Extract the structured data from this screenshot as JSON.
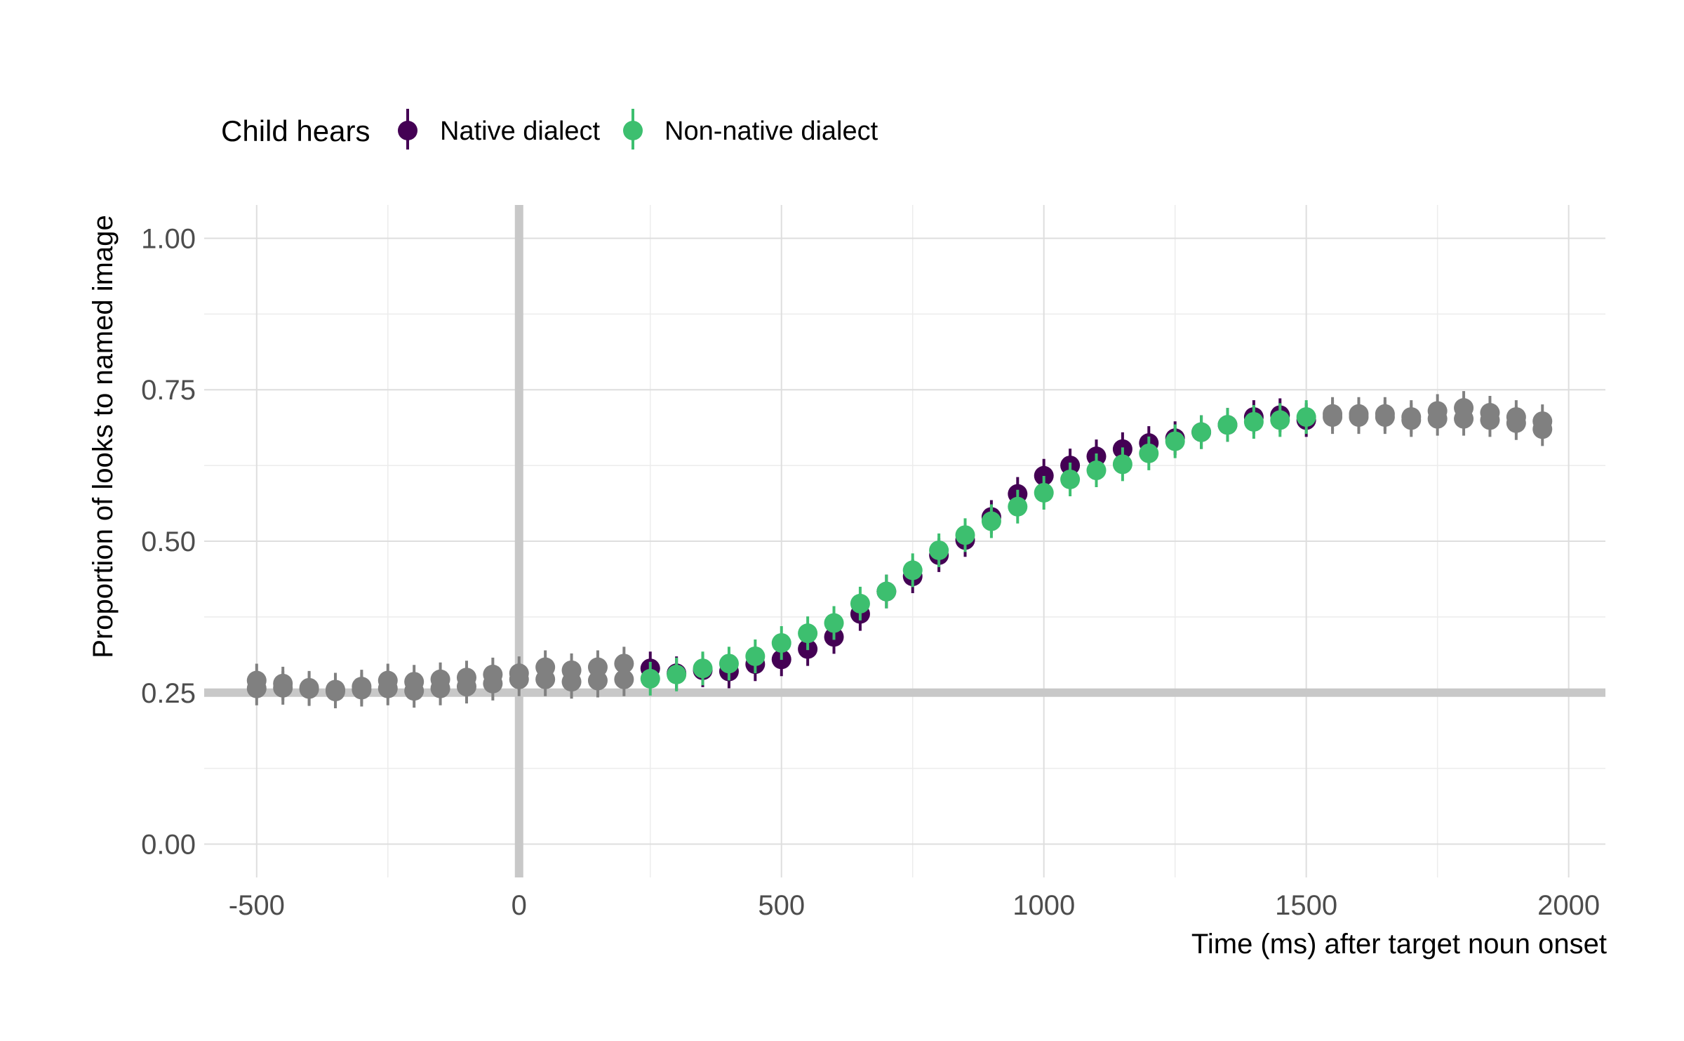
{
  "chart_data": {
    "type": "scatter",
    "xlabel": "Time (ms) after target noun onset",
    "ylabel": "Proportion of looks to named image",
    "xlim": [
      -600,
      2070
    ],
    "ylim": [
      -0.055,
      1.055
    ],
    "x_ticks": [
      "-500",
      "0",
      "500",
      "1000",
      "1500",
      "2000"
    ],
    "y_ticks": [
      "0.00",
      "0.25",
      "0.50",
      "0.75",
      "1.00"
    ],
    "reference_lines": {
      "x": 0,
      "y": 0.25
    },
    "grid": true,
    "legend": {
      "title": "Child hears",
      "position": "top-left",
      "entries": [
        {
          "label": "Native dialect",
          "color": "#440154"
        },
        {
          "label": "Non-native dialect",
          "color": "#3dbf6f"
        }
      ]
    },
    "outside_window_color": "#808080",
    "series": [
      {
        "name": "Native dialect",
        "color": "#440154",
        "x": [
          -500,
          -450,
          -400,
          -350,
          -300,
          -250,
          -200,
          -150,
          -100,
          -50,
          0,
          50,
          100,
          150,
          200,
          250,
          300,
          350,
          400,
          450,
          500,
          550,
          600,
          650,
          700,
          750,
          800,
          850,
          900,
          950,
          1000,
          1050,
          1100,
          1150,
          1200,
          1250,
          1300,
          1350,
          1400,
          1450,
          1500,
          1550,
          1600,
          1650,
          1700,
          1750,
          1800,
          1850,
          1900,
          1950
        ],
        "y": [
          0.27,
          0.265,
          0.258,
          0.255,
          0.26,
          0.27,
          0.268,
          0.272,
          0.275,
          0.28,
          0.282,
          0.292,
          0.287,
          0.292,
          0.298,
          0.29,
          0.282,
          0.287,
          0.285,
          0.297,
          0.305,
          0.322,
          0.342,
          0.38,
          0.417,
          0.442,
          0.477,
          0.502,
          0.54,
          0.578,
          0.608,
          0.625,
          0.64,
          0.652,
          0.662,
          0.67,
          0.68,
          0.692,
          0.705,
          0.708,
          0.7,
          0.71,
          0.71,
          0.71,
          0.705,
          0.715,
          0.72,
          0.712,
          0.705,
          0.698
        ]
      },
      {
        "name": "Non-native dialect",
        "color": "#3dbf6f",
        "x": [
          -500,
          -450,
          -400,
          -350,
          -300,
          -250,
          -200,
          -150,
          -100,
          -50,
          0,
          50,
          100,
          150,
          200,
          250,
          300,
          350,
          400,
          450,
          500,
          550,
          600,
          650,
          700,
          750,
          800,
          850,
          900,
          950,
          1000,
          1050,
          1100,
          1150,
          1200,
          1250,
          1300,
          1350,
          1400,
          1450,
          1500,
          1550,
          1600,
          1650,
          1700,
          1750,
          1800,
          1850,
          1900,
          1950
        ],
        "y": [
          0.257,
          0.258,
          0.256,
          0.252,
          0.255,
          0.257,
          0.253,
          0.257,
          0.26,
          0.265,
          0.272,
          0.272,
          0.268,
          0.27,
          0.272,
          0.273,
          0.28,
          0.29,
          0.298,
          0.31,
          0.332,
          0.348,
          0.365,
          0.397,
          0.417,
          0.452,
          0.485,
          0.51,
          0.533,
          0.557,
          0.58,
          0.602,
          0.617,
          0.627,
          0.645,
          0.665,
          0.68,
          0.692,
          0.697,
          0.7,
          0.705,
          0.705,
          0.705,
          0.705,
          0.7,
          0.702,
          0.702,
          0.7,
          0.695,
          0.685
        ]
      }
    ],
    "highlight_window": [
      250,
      1500
    ]
  }
}
